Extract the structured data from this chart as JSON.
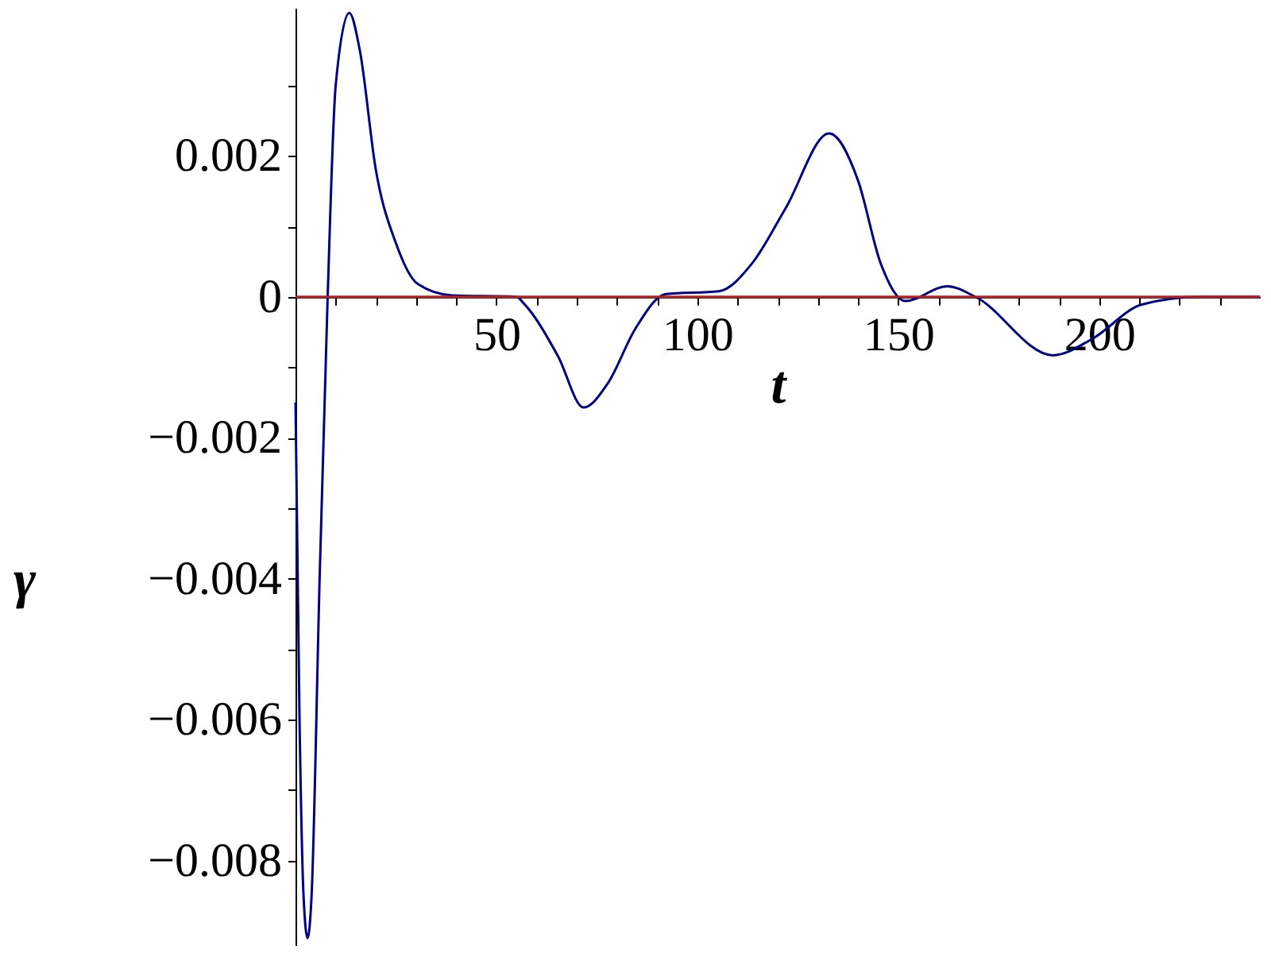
{
  "chart_data": {
    "type": "line",
    "xlabel": "t",
    "ylabel": "γ",
    "x": [
      0,
      1,
      2,
      3,
      4,
      6,
      8,
      10,
      13.4,
      16,
      20,
      25,
      30.5,
      39,
      55,
      56.9,
      65.3,
      71.7,
      77.7,
      84.6,
      92.2,
      105.4,
      113.7,
      122,
      132.8,
      140,
      145.6,
      151.8,
      162.2,
      169.2,
      188.5,
      198.2,
      210.6,
      225,
      240
    ],
    "series": [
      {
        "color": "#000080",
        "values": [
          -0.0015,
          -0.006,
          -0.0085,
          -0.0091,
          -0.0085,
          -0.004,
          0,
          0.003,
          0.00403,
          0.0035,
          0.0018,
          0.00076,
          0.00018,
          2e-05,
          0,
          -0.0001,
          -0.00084,
          -0.00157,
          -0.00123,
          -0.00045,
          4e-05,
          8e-05,
          0.00048,
          0.00126,
          0.00232,
          0.00165,
          0.00048,
          -6e-05,
          0.00015,
          0,
          -0.00083,
          -0.0006,
          -0.00011,
          0,
          0
        ]
      }
    ],
    "xlim": [
      0,
      240
    ],
    "ylim": [
      -0.0092,
      0.0041
    ],
    "xticks": [
      {
        "value": 10,
        "label": null
      },
      {
        "value": 20,
        "label": null
      },
      {
        "value": 30,
        "label": null
      },
      {
        "value": 40,
        "label": null
      },
      50,
      {
        "value": 60,
        "label": null
      },
      {
        "value": 70,
        "label": null
      },
      {
        "value": 80,
        "label": null
      },
      {
        "value": 90,
        "label": null
      },
      100,
      {
        "value": 110,
        "label": null
      },
      {
        "value": 120,
        "label": null
      },
      {
        "value": 130,
        "label": null
      },
      {
        "value": 140,
        "label": null
      },
      150,
      {
        "value": 160,
        "label": null
      },
      {
        "value": 170,
        "label": null
      },
      {
        "value": 180,
        "label": null
      },
      {
        "value": 190,
        "label": null
      },
      200,
      {
        "value": 210,
        "label": null
      },
      {
        "value": 220,
        "label": null
      },
      {
        "value": 230,
        "label": null
      }
    ],
    "yticks": [
      {
        "value": -0.008,
        "label": "−0.008"
      },
      {
        "value": -0.007,
        "label": null
      },
      {
        "value": -0.006,
        "label": "−0.006"
      },
      {
        "value": -0.005,
        "label": null
      },
      {
        "value": -0.004,
        "label": "−0.004"
      },
      {
        "value": -0.003,
        "label": null
      },
      {
        "value": -0.002,
        "label": "−0.002"
      },
      {
        "value": -0.001,
        "label": null
      },
      0,
      {
        "value": 0.001,
        "label": null
      },
      0.002,
      {
        "value": 0.003,
        "label": null
      }
    ],
    "ref_lines": [
      {
        "axis": "y",
        "value": 0,
        "color": "#b22222"
      }
    ],
    "grid": false
  }
}
